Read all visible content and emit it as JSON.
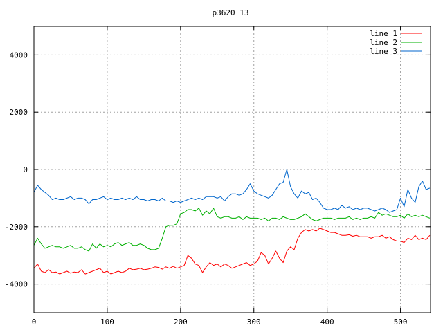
{
  "chart_data": {
    "type": "line",
    "title": "p3620_13",
    "xlabel": "",
    "ylabel": "",
    "xlim": [
      0,
      541
    ],
    "ylim": [
      -5000,
      5000
    ],
    "xticks": [
      0,
      100,
      200,
      300,
      400,
      500
    ],
    "yticks": [
      -4000,
      -2000,
      0,
      2000,
      4000
    ],
    "grid": true,
    "legend_position": "top-right",
    "series": [
      {
        "name": "line 1",
        "color": "#ff0000",
        "x": [
          0,
          5,
          10,
          15,
          20,
          25,
          30,
          35,
          40,
          45,
          50,
          55,
          60,
          65,
          70,
          75,
          80,
          85,
          90,
          95,
          100,
          105,
          110,
          115,
          120,
          125,
          130,
          135,
          140,
          145,
          150,
          155,
          160,
          165,
          170,
          175,
          180,
          185,
          190,
          195,
          200,
          205,
          210,
          215,
          220,
          225,
          230,
          235,
          240,
          245,
          250,
          255,
          260,
          265,
          270,
          275,
          280,
          285,
          290,
          295,
          300,
          305,
          310,
          315,
          320,
          325,
          330,
          335,
          340,
          345,
          350,
          355,
          360,
          365,
          370,
          375,
          380,
          385,
          390,
          395,
          400,
          405,
          410,
          415,
          420,
          425,
          430,
          435,
          440,
          445,
          450,
          455,
          460,
          465,
          470,
          475,
          480,
          485,
          490,
          495,
          500,
          505,
          510,
          515,
          520,
          525,
          530,
          535,
          540
        ],
        "y": [
          -3450,
          -3300,
          -3550,
          -3600,
          -3500,
          -3600,
          -3580,
          -3650,
          -3600,
          -3550,
          -3620,
          -3580,
          -3600,
          -3500,
          -3650,
          -3600,
          -3550,
          -3500,
          -3450,
          -3600,
          -3550,
          -3650,
          -3600,
          -3550,
          -3600,
          -3550,
          -3450,
          -3500,
          -3480,
          -3450,
          -3500,
          -3480,
          -3450,
          -3400,
          -3420,
          -3480,
          -3400,
          -3450,
          -3380,
          -3450,
          -3400,
          -3350,
          -3000,
          -3100,
          -3300,
          -3350,
          -3600,
          -3400,
          -3250,
          -3350,
          -3300,
          -3400,
          -3300,
          -3350,
          -3450,
          -3400,
          -3350,
          -3300,
          -3250,
          -3350,
          -3300,
          -3200,
          -2900,
          -3000,
          -3300,
          -3100,
          -2850,
          -3100,
          -3250,
          -2850,
          -2700,
          -2800,
          -2400,
          -2200,
          -2100,
          -2150,
          -2100,
          -2150,
          -2050,
          -2100,
          -2150,
          -2200,
          -2200,
          -2250,
          -2300,
          -2300,
          -2280,
          -2330,
          -2300,
          -2350,
          -2350,
          -2350,
          -2400,
          -2350,
          -2350,
          -2300,
          -2400,
          -2350,
          -2450,
          -2500,
          -2500,
          -2550,
          -2400,
          -2450,
          -2300,
          -2450,
          -2400,
          -2450,
          -2300
        ],
        "values": [
          -3450,
          -3300,
          -3550,
          -3600,
          -3500,
          -3600,
          -3580,
          -3650,
          -3600,
          -3550,
          -3620,
          -3580,
          -3600,
          -3500,
          -3650,
          -3600,
          -3550,
          -3500,
          -3450,
          -3600,
          -3550,
          -3650,
          -3600,
          -3550,
          -3600,
          -3550,
          -3450,
          -3500,
          -3480,
          -3450,
          -3500,
          -3480,
          -3450,
          -3400,
          -3420,
          -3480,
          -3400,
          -3450,
          -3380,
          -3450,
          -3400,
          -3350,
          -3000,
          -3100,
          -3300,
          -3350,
          -3600,
          -3400,
          -3250,
          -3350,
          -3300,
          -3400,
          -3300,
          -3350,
          -3450,
          -3400,
          -3350,
          -3300,
          -3250,
          -3350,
          -3300,
          -3200,
          -2900,
          -3000,
          -3300,
          -3100,
          -2850,
          -3100,
          -3250,
          -2850,
          -2700,
          -2800,
          -2400,
          -2200,
          -2100,
          -2150,
          -2100,
          -2150,
          -2050,
          -2100,
          -2150,
          -2200,
          -2200,
          -2250,
          -2300,
          -2300,
          -2280,
          -2330,
          -2300,
          -2350,
          -2350,
          -2350,
          -2400,
          -2350,
          -2350,
          -2300,
          -2400,
          -2350,
          -2450,
          -2500,
          -2500,
          -2550,
          -2400,
          -2450,
          -2300,
          -2450,
          -2400,
          -2450,
          -2300
        ]
      },
      {
        "name": "line 2",
        "color": "#00b000",
        "x": [
          0,
          5,
          10,
          15,
          20,
          25,
          30,
          35,
          40,
          45,
          50,
          55,
          60,
          65,
          70,
          75,
          80,
          85,
          90,
          95,
          100,
          105,
          110,
          115,
          120,
          125,
          130,
          135,
          140,
          145,
          150,
          155,
          160,
          165,
          170,
          175,
          180,
          185,
          190,
          195,
          200,
          205,
          210,
          215,
          220,
          225,
          230,
          235,
          240,
          245,
          250,
          255,
          260,
          265,
          270,
          275,
          280,
          285,
          290,
          295,
          300,
          305,
          310,
          315,
          320,
          325,
          330,
          335,
          340,
          345,
          350,
          355,
          360,
          365,
          370,
          375,
          380,
          385,
          390,
          395,
          400,
          405,
          410,
          415,
          420,
          425,
          430,
          435,
          440,
          445,
          450,
          455,
          460,
          465,
          470,
          475,
          480,
          485,
          490,
          495,
          500,
          505,
          510,
          515,
          520,
          525,
          530,
          535,
          540
        ],
        "y": [
          -2650,
          -2400,
          -2600,
          -2750,
          -2700,
          -2650,
          -2700,
          -2700,
          -2750,
          -2700,
          -2650,
          -2750,
          -2750,
          -2700,
          -2800,
          -2850,
          -2600,
          -2750,
          -2600,
          -2700,
          -2650,
          -2700,
          -2600,
          -2550,
          -2650,
          -2600,
          -2550,
          -2650,
          -2650,
          -2600,
          -2650,
          -2750,
          -2800,
          -2800,
          -2750,
          -2400,
          -2000,
          -1950,
          -1950,
          -1900,
          -1550,
          -1500,
          -1400,
          -1400,
          -1450,
          -1350,
          -1600,
          -1450,
          -1550,
          -1350,
          -1650,
          -1700,
          -1650,
          -1650,
          -1700,
          -1700,
          -1650,
          -1750,
          -1650,
          -1700,
          -1700,
          -1700,
          -1750,
          -1700,
          -1800,
          -1700,
          -1700,
          -1750,
          -1650,
          -1700,
          -1750,
          -1750,
          -1700,
          -1650,
          -1550,
          -1650,
          -1750,
          -1800,
          -1750,
          -1700,
          -1700,
          -1700,
          -1750,
          -1700,
          -1700,
          -1700,
          -1650,
          -1750,
          -1700,
          -1750,
          -1700,
          -1700,
          -1650,
          -1700,
          -1500,
          -1600,
          -1550,
          -1600,
          -1650,
          -1650,
          -1600,
          -1700,
          -1550,
          -1650,
          -1600,
          -1650,
          -1600,
          -1650,
          -1700
        ],
        "values": [
          -2650,
          -2400,
          -2600,
          -2750,
          -2700,
          -2650,
          -2700,
          -2700,
          -2750,
          -2700,
          -2650,
          -2750,
          -2750,
          -2700,
          -2800,
          -2850,
          -2600,
          -2750,
          -2600,
          -2700,
          -2650,
          -2700,
          -2600,
          -2550,
          -2650,
          -2600,
          -2550,
          -2650,
          -2650,
          -2600,
          -2650,
          -2750,
          -2800,
          -2800,
          -2750,
          -2400,
          -2000,
          -1950,
          -1950,
          -1900,
          -1550,
          -1500,
          -1400,
          -1400,
          -1450,
          -1350,
          -1600,
          -1450,
          -1550,
          -1350,
          -1650,
          -1700,
          -1650,
          -1650,
          -1700,
          -1700,
          -1650,
          -1750,
          -1650,
          -1700,
          -1700,
          -1700,
          -1750,
          -1700,
          -1800,
          -1700,
          -1700,
          -1750,
          -1650,
          -1700,
          -1750,
          -1750,
          -1700,
          -1650,
          -1550,
          -1650,
          -1750,
          -1800,
          -1750,
          -1700,
          -1700,
          -1700,
          -1750,
          -1700,
          -1700,
          -1700,
          -1650,
          -1750,
          -1700,
          -1750,
          -1700,
          -1700,
          -1650,
          -1700,
          -1500,
          -1600,
          -1550,
          -1600,
          -1650,
          -1650,
          -1600,
          -1700,
          -1550,
          -1650,
          -1600,
          -1650,
          -1600,
          -1650,
          -1700
        ]
      },
      {
        "name": "line 3",
        "color": "#0066cc",
        "x": [
          0,
          5,
          10,
          15,
          20,
          25,
          30,
          35,
          40,
          45,
          50,
          55,
          60,
          65,
          70,
          75,
          80,
          85,
          90,
          95,
          100,
          105,
          110,
          115,
          120,
          125,
          130,
          135,
          140,
          145,
          150,
          155,
          160,
          165,
          170,
          175,
          180,
          185,
          190,
          195,
          200,
          205,
          210,
          215,
          220,
          225,
          230,
          235,
          240,
          245,
          250,
          255,
          260,
          265,
          270,
          275,
          280,
          285,
          290,
          295,
          300,
          305,
          310,
          315,
          320,
          325,
          330,
          335,
          340,
          345,
          350,
          355,
          360,
          365,
          370,
          375,
          380,
          385,
          390,
          395,
          400,
          405,
          410,
          415,
          420,
          425,
          430,
          435,
          440,
          445,
          450,
          455,
          460,
          465,
          470,
          475,
          480,
          485,
          490,
          495,
          500,
          505,
          510,
          515,
          520,
          525,
          530,
          535,
          540
        ],
        "y": [
          -800,
          -550,
          -700,
          -800,
          -900,
          -1050,
          -1000,
          -1050,
          -1050,
          -1000,
          -950,
          -1050,
          -1000,
          -1000,
          -1050,
          -1200,
          -1050,
          -1050,
          -1000,
          -950,
          -1050,
          -1000,
          -1050,
          -1050,
          -1000,
          -1050,
          -1000,
          -1050,
          -950,
          -1050,
          -1050,
          -1100,
          -1050,
          -1050,
          -1100,
          -1000,
          -1100,
          -1100,
          -1150,
          -1100,
          -1150,
          -1100,
          -1050,
          -1000,
          -1050,
          -1000,
          -1050,
          -950,
          -950,
          -950,
          -1000,
          -950,
          -1100,
          -950,
          -850,
          -850,
          -900,
          -850,
          -700,
          -500,
          -750,
          -850,
          -900,
          -950,
          -1000,
          -900,
          -700,
          -500,
          -450,
          0,
          -600,
          -850,
          -1000,
          -750,
          -850,
          -800,
          -1050,
          -1000,
          -1150,
          -1350,
          -1400,
          -1400,
          -1350,
          -1400,
          -1250,
          -1350,
          -1300,
          -1400,
          -1350,
          -1400,
          -1350,
          -1350,
          -1400,
          -1450,
          -1400,
          -1350,
          -1400,
          -1500,
          -1450,
          -1400,
          -1000,
          -1300,
          -700,
          -1000,
          -1150,
          -600,
          -400,
          -700,
          -650
        ],
        "values": [
          -800,
          -550,
          -700,
          -800,
          -900,
          -1050,
          -1000,
          -1050,
          -1050,
          -1000,
          -950,
          -1050,
          -1000,
          -1000,
          -1050,
          -1200,
          -1050,
          -1050,
          -1000,
          -950,
          -1050,
          -1000,
          -1050,
          -1050,
          -1000,
          -1050,
          -1000,
          -1050,
          -950,
          -1050,
          -1050,
          -1100,
          -1050,
          -1050,
          -1100,
          -1000,
          -1100,
          -1100,
          -1150,
          -1100,
          -1150,
          -1100,
          -1050,
          -1000,
          -1050,
          -1000,
          -1050,
          -950,
          -950,
          -950,
          -1000,
          -950,
          -1100,
          -950,
          -850,
          -850,
          -900,
          -850,
          -700,
          -500,
          -750,
          -850,
          -900,
          -950,
          -1000,
          -900,
          -700,
          -500,
          -450,
          0,
          -600,
          -850,
          -1000,
          -750,
          -850,
          -800,
          -1050,
          -1000,
          -1150,
          -1350,
          -1400,
          -1400,
          -1350,
          -1400,
          -1250,
          -1350,
          -1300,
          -1400,
          -1350,
          -1400,
          -1350,
          -1350,
          -1400,
          -1450,
          -1400,
          -1350,
          -1400,
          -1500,
          -1450,
          -1400,
          -1000,
          -1300,
          -700,
          -1000,
          -1150,
          -600,
          -400,
          -700,
          -650
        ]
      }
    ]
  }
}
